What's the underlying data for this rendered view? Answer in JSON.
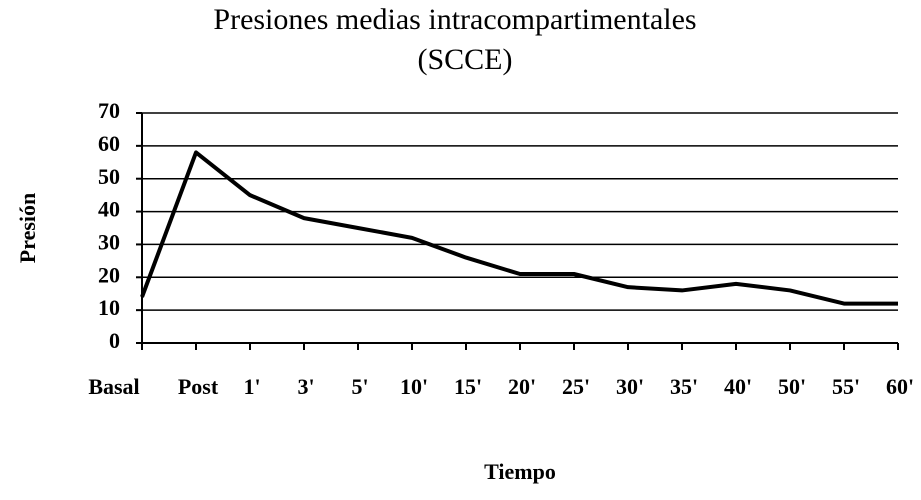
{
  "chart_data": {
    "type": "line",
    "title": "Presiones medias intracompartimentales",
    "subtitle": "(SCCE)",
    "x_label": "Tiempo",
    "y_label": "Presión",
    "categories": [
      "Basal",
      "Post",
      "1'",
      "3'",
      "5'",
      "10'",
      "15'",
      "20'",
      "25'",
      "30'",
      "35'",
      "40'",
      "50'",
      "55'",
      "60'"
    ],
    "series": [
      {
        "name": "SCCE",
        "color": "#000000",
        "values": [
          14,
          58,
          45,
          38,
          35,
          32,
          26,
          21,
          21,
          17,
          16,
          18,
          16,
          12,
          12
        ]
      }
    ],
    "ylim": [
      0,
      70
    ],
    "yticks": [
      0,
      10,
      20,
      30,
      40,
      50,
      60,
      70
    ],
    "grid": true
  }
}
